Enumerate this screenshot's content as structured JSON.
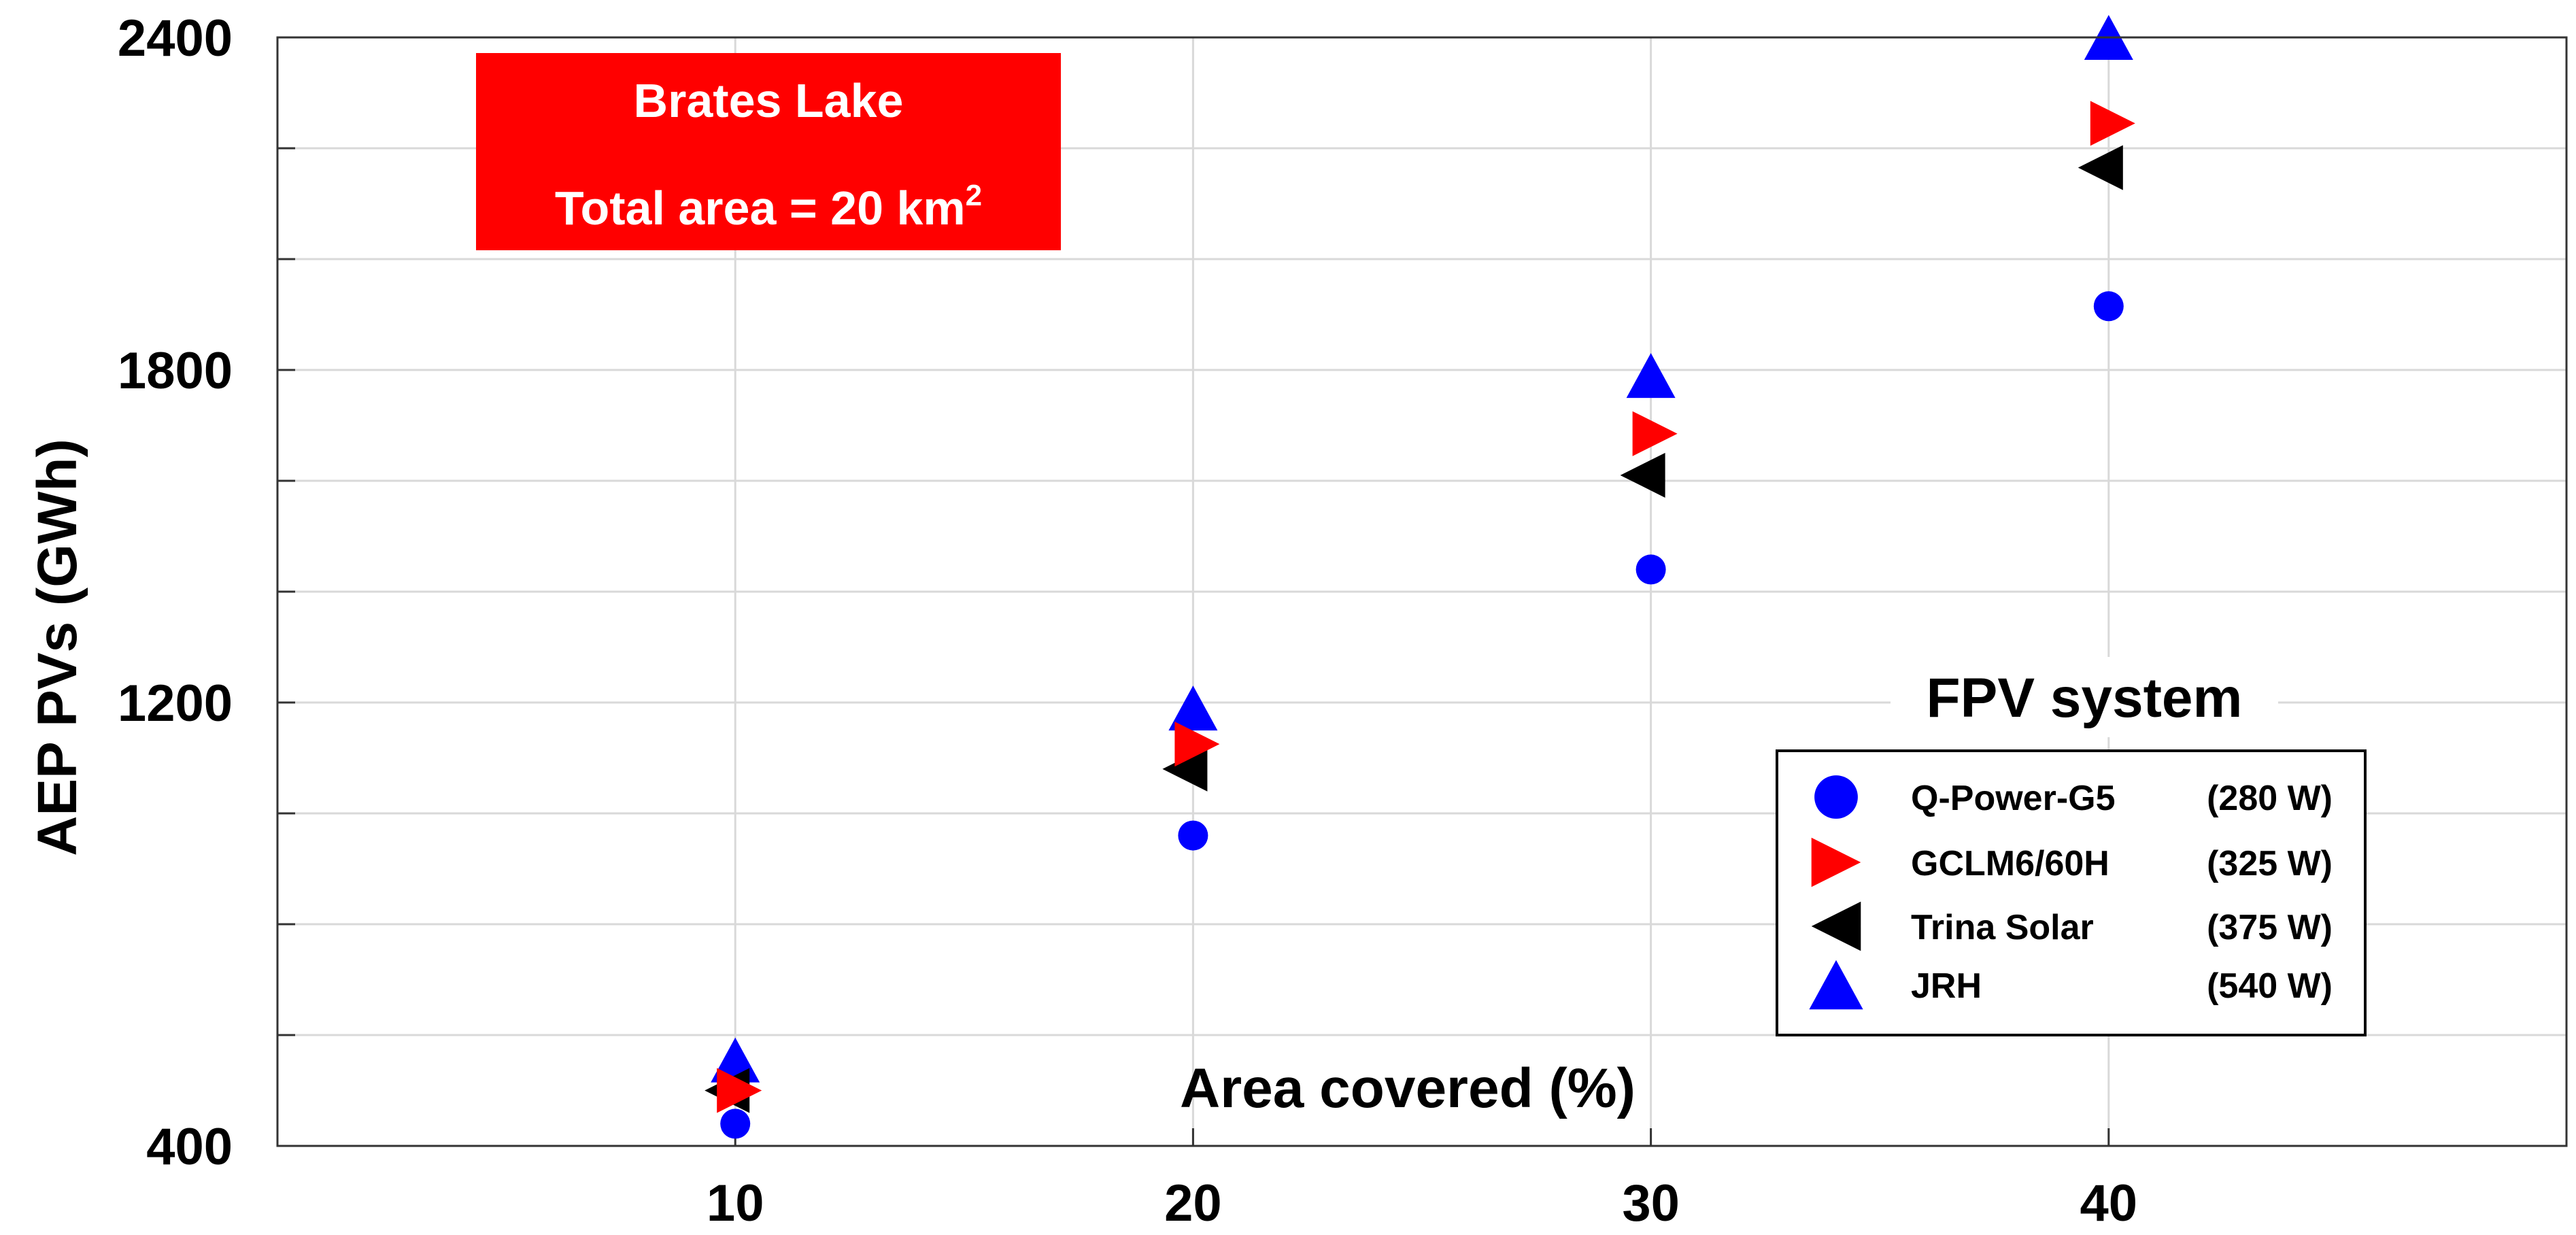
{
  "chart_data": {
    "type": "scatter",
    "x": [
      10,
      20,
      30,
      40
    ],
    "xlim": [
      0,
      50
    ],
    "ylim": [
      400,
      2400
    ],
    "xticks": [
      10,
      20,
      30,
      40
    ],
    "yticks": [
      400,
      1200,
      1800,
      2400
    ],
    "grid": true,
    "xlabel": "Area covered (%)",
    "ylabel": "AEP PVs (GWh)",
    "annotation": {
      "line1": "Brates Lake",
      "line2_prefix": "Total area = 20 km",
      "line2_sup": "2",
      "background": "#ff0000"
    },
    "legend": {
      "title": "FPV system",
      "placement": "lower-right"
    },
    "series": [
      {
        "name": "Q-Power-G5",
        "rating": "(280 W)",
        "marker": "circle",
        "color": "#0000ff",
        "values": [
          440,
          960,
          1440,
          1915
        ]
      },
      {
        "name": "GCLM6/60H",
        "rating": "(325 W)",
        "marker": "triangle-right",
        "color": "#ff0000",
        "values": [
          500,
          1125,
          1685,
          2245
        ]
      },
      {
        "name": "Trina Solar",
        "rating": "(375 W)",
        "marker": "triangle-left",
        "color": "#000000",
        "values": [
          500,
          1080,
          1610,
          2165
        ]
      },
      {
        "name": "JRH",
        "rating": "(540 W)",
        "marker": "triangle-up",
        "color": "#0000ff",
        "values": [
          555,
          1190,
          1790,
          2400
        ]
      }
    ]
  }
}
